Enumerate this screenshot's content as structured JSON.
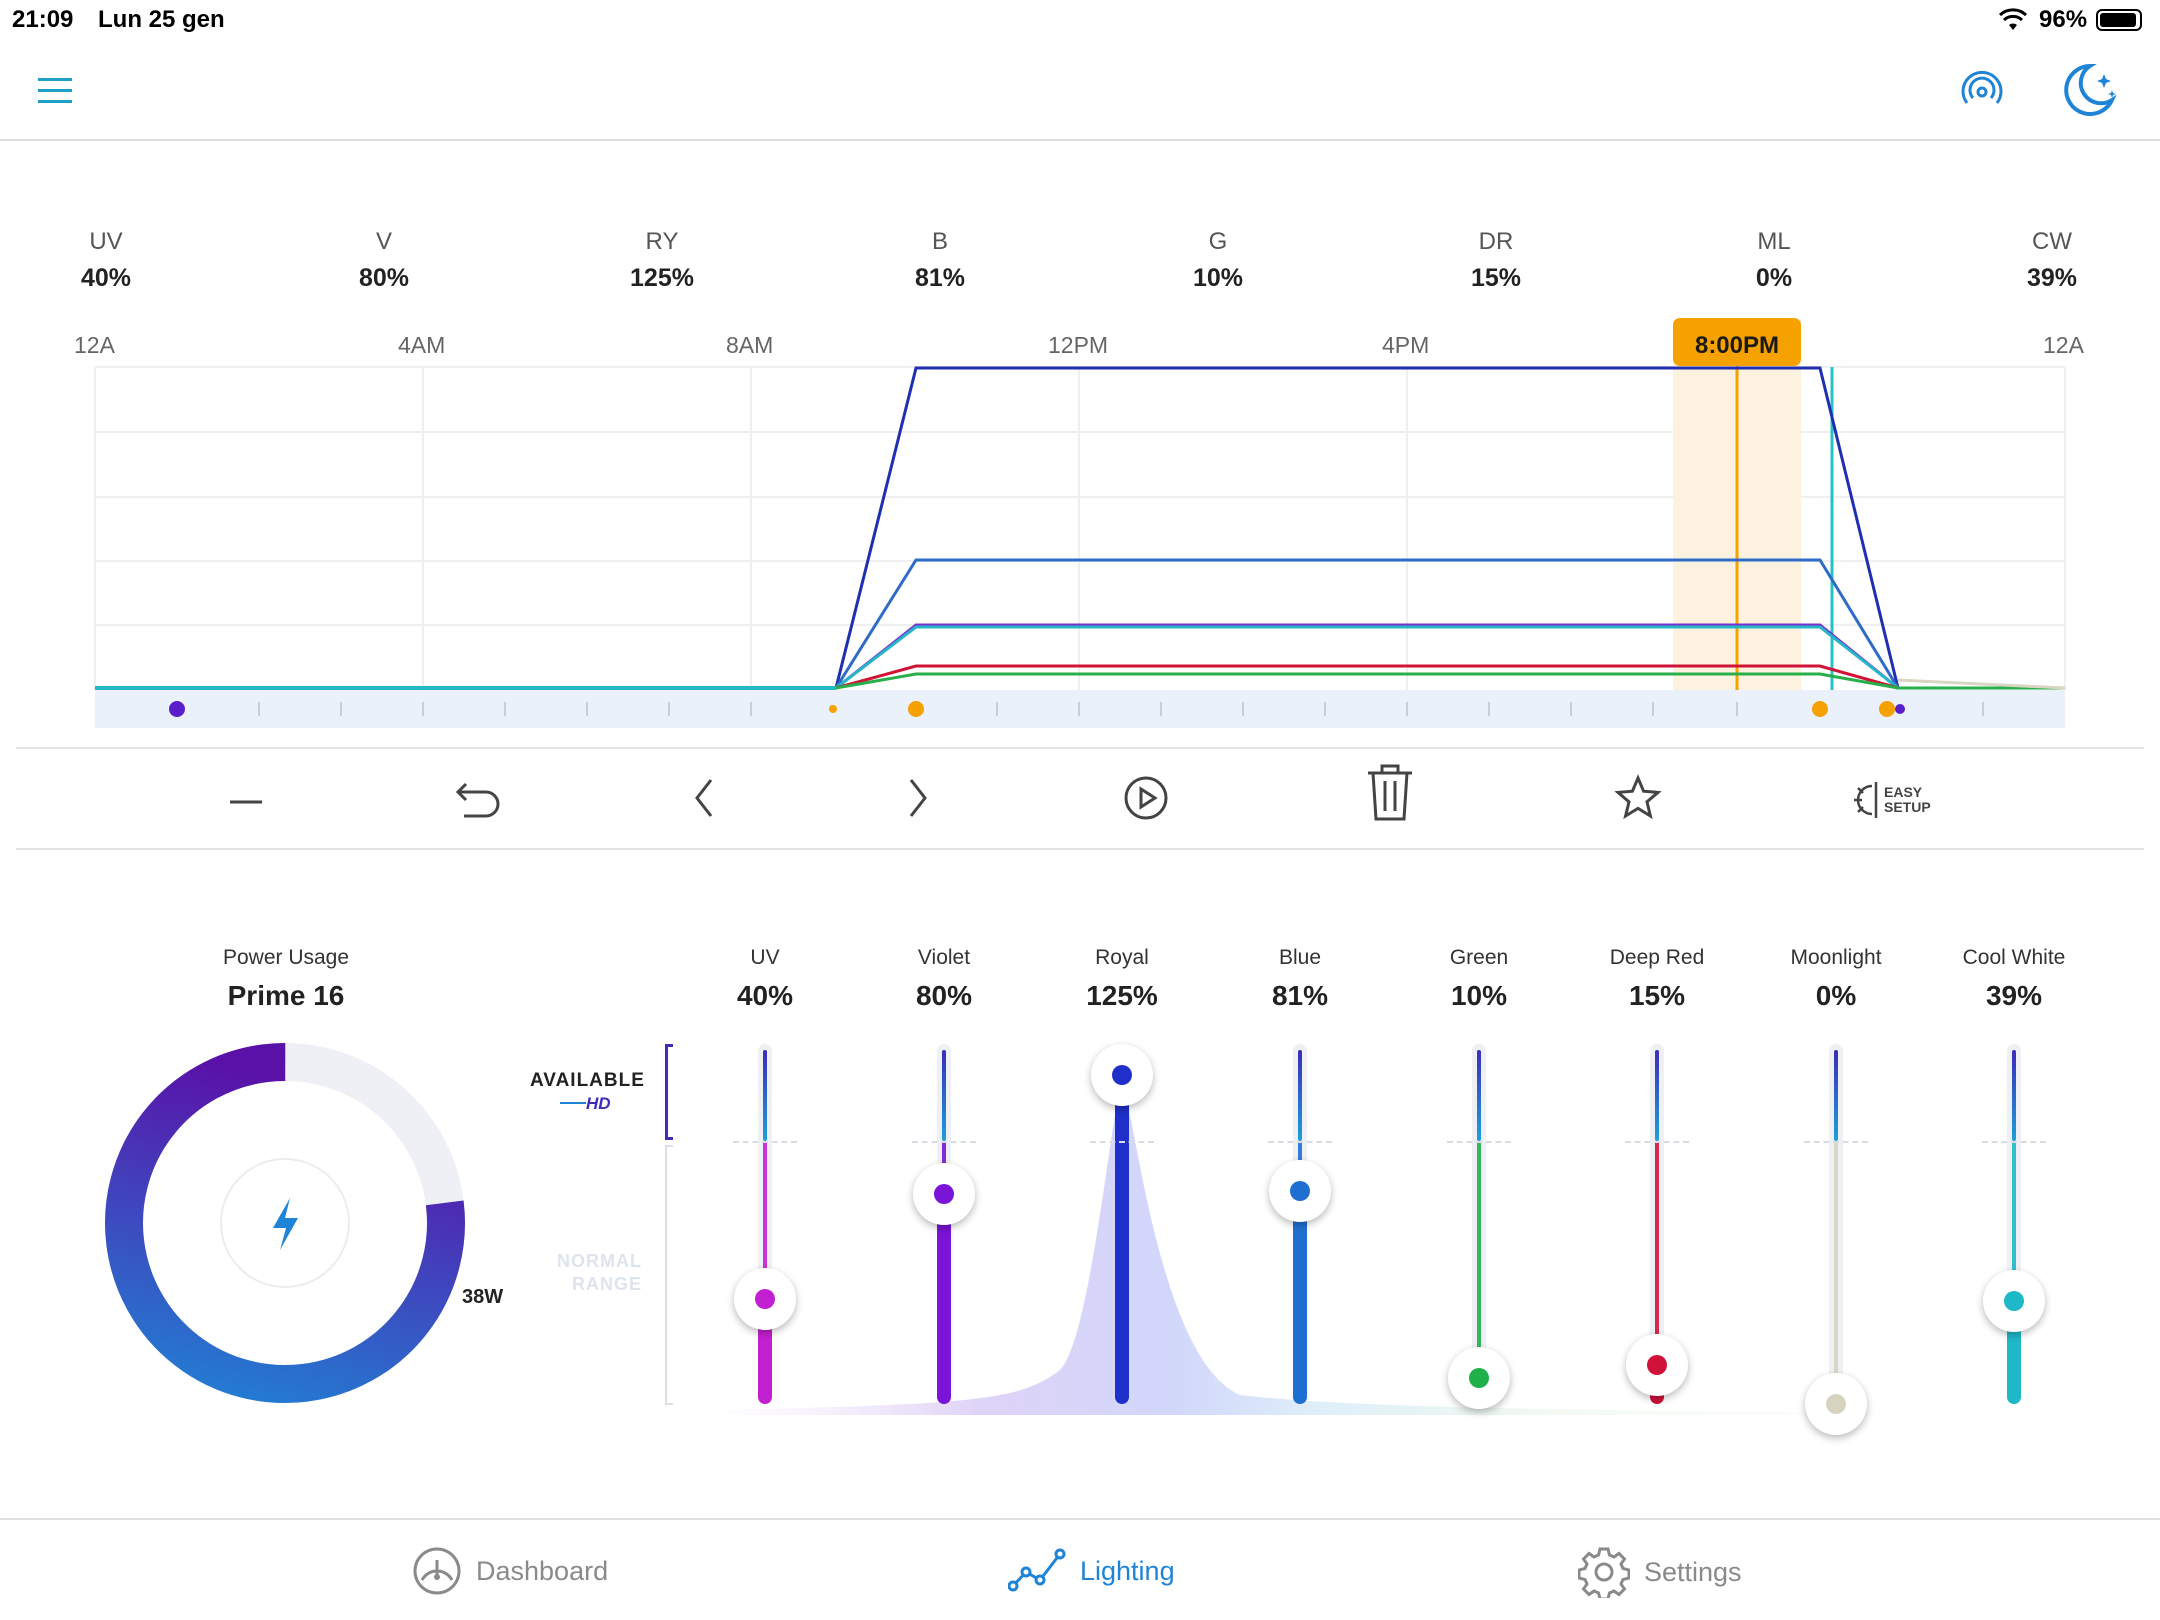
{
  "status": {
    "time": "21:09",
    "date": "Lun 25 gen",
    "battery": "96%"
  },
  "top_icons": {
    "menu": "menu-icon",
    "radio": "radio-signal-icon",
    "night": "moon-stars-icon"
  },
  "channels_top": [
    {
      "label": "UV",
      "value": "40%"
    },
    {
      "label": "V",
      "value": "80%"
    },
    {
      "label": "RY",
      "value": "125%"
    },
    {
      "label": "B",
      "value": "81%"
    },
    {
      "label": "G",
      "value": "10%"
    },
    {
      "label": "DR",
      "value": "15%"
    },
    {
      "label": "ML",
      "value": "0%"
    },
    {
      "label": "CW",
      "value": "39%"
    }
  ],
  "schedule": {
    "axis_labels": [
      "12A",
      "4AM",
      "8AM",
      "12PM",
      "4PM",
      "12A"
    ],
    "current_time_label": "8:00PM",
    "colors": {
      "royal": "#1f2fb0",
      "blue": "#2f6bc9",
      "violet": "#7b2fd1",
      "uv": "#c21fd0",
      "cool_white": "#26b7c6",
      "green": "#27b04a",
      "deep_red": "#d01237",
      "moonlight": "#d8d5c2",
      "marker": "#f5a200"
    }
  },
  "toolbar": {
    "easy_setup_line1": "EASY",
    "easy_setup_line2": "SETUP"
  },
  "power": {
    "title": "Power Usage",
    "device": "Prime 16",
    "watts": "38W",
    "fraction": 0.77
  },
  "range_labels": {
    "available": "AVAILABLE",
    "hd": "HD",
    "normal1": "NORMAL",
    "normal2": "RANGE"
  },
  "sliders": [
    {
      "label": "UV",
      "value": "40%",
      "level": 0.4,
      "color": "#c21fd0"
    },
    {
      "label": "Violet",
      "value": "80%",
      "level": 0.8,
      "color": "#7a14d6"
    },
    {
      "label": "Royal",
      "value": "125%",
      "level": 1.25,
      "color": "#1f2fc9"
    },
    {
      "label": "Blue",
      "value": "81%",
      "level": 0.81,
      "color": "#1f6fd0"
    },
    {
      "label": "Green",
      "value": "10%",
      "level": 0.1,
      "color": "#1fb04a"
    },
    {
      "label": "Deep Red",
      "value": "15%",
      "level": 0.15,
      "color": "#d0123a"
    },
    {
      "label": "Moonlight",
      "value": "0%",
      "level": 0.0,
      "color": "#d6d4c0"
    },
    {
      "label": "Cool White",
      "value": "39%",
      "level": 0.39,
      "color": "#1fb8c8"
    }
  ],
  "tabs": [
    {
      "label": "Dashboard",
      "icon": "gauge-icon",
      "active": false
    },
    {
      "label": "Lighting",
      "icon": "chart-line-icon",
      "active": true
    },
    {
      "label": "Settings",
      "icon": "gear-icon",
      "active": false
    }
  ]
}
